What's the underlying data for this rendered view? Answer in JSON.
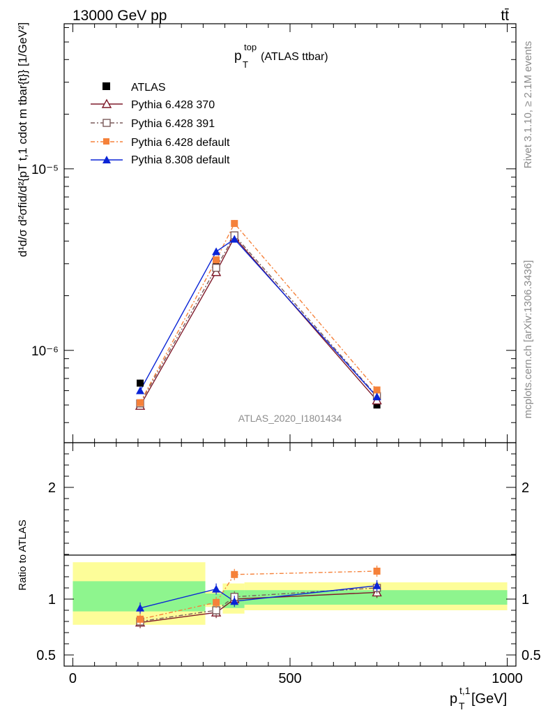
{
  "header": {
    "left": "13000 GeV pp",
    "right": "tt̄"
  },
  "side_labels": {
    "rivet": "Rivet 3.1.10, ≥ 2.1M events",
    "mcplots": "mcplots.cern.ch [arXiv:1306.3436]"
  },
  "analysis_id": "ATLAS_2020_I1801434",
  "colors": {
    "atlas": "#000000",
    "p370": "#7f1a2a",
    "p391": "#7a5a5a",
    "p6def": "#f5813a",
    "p8def": "#0a24d6",
    "green": "#8ef58e",
    "yellow": "#fdfd99"
  },
  "chart_data": [
    {
      "type": "line",
      "panel": "main",
      "title_main": "p",
      "title_sub": "T",
      "title_sup": "top",
      "title_rest": " (ATLAS ttbar)",
      "ylabel": "d¹d/σ d² σ^{fid}/d² {p_T^{t,1} cdot m^{tbar{t}}} [1/GeV²]",
      "ylabel_display": "d¹d/σ d²σfid/d²{pT t,1 cdot m tbar{t}} [1/GeV²]",
      "yscale": "log",
      "ylim": [
        3.1e-07,
        6.3e-05
      ],
      "xlim": [
        -20,
        1020
      ],
      "y_tick_labels": [
        "10⁻⁶",
        "10⁻⁵"
      ],
      "series": [
        {
          "name": "ATLAS",
          "x": [
            155,
            330,
            372,
            700
          ],
          "y": [
            6.6e-07,
            2.95e-06,
            4.15e-06,
            5e-07
          ],
          "err": [
            3e-09,
            2e-07,
            2.5e-07,
            2e-08
          ]
        },
        {
          "name": "Pythia 6.428 370",
          "x": [
            155,
            330,
            372,
            700
          ],
          "y": [
            4.95e-07,
            2.7e-06,
            4.2e-06,
            5.3e-07
          ]
        },
        {
          "name": "Pythia 6.428 391",
          "x": [
            155,
            330,
            372,
            700
          ],
          "y": [
            5.1e-07,
            2.85e-06,
            4.3e-06,
            5.6e-07
          ]
        },
        {
          "name": "Pythia 6.428 default",
          "x": [
            155,
            330,
            372,
            700
          ],
          "y": [
            5.15e-07,
            3.15e-06,
            5e-06,
            6.05e-07
          ]
        },
        {
          "name": "Pythia 8.308 default",
          "x": [
            155,
            330,
            372,
            700
          ],
          "y": [
            6e-07,
            3.5e-06,
            4.1e-06,
            5.55e-07
          ]
        }
      ]
    },
    {
      "type": "line",
      "panel": "ratio",
      "ylabel": "Ratio to ATLAS",
      "xlabel_main": "p",
      "xlabel_sub": "T",
      "xlabel_sup": "t,1",
      "xlabel_rest": " [GeV]",
      "xlim": [
        -20,
        1020
      ],
      "ylim": [
        0.4,
        2.4
      ],
      "x_tick_labels": [
        "0",
        "500",
        "1000"
      ],
      "y_tick_labels": [
        "0.5",
        "1",
        "2"
      ],
      "bands": [
        {
          "x0": 0,
          "x1": 305,
          "green": [
            0.89,
            1.16
          ],
          "yellow": [
            0.77,
            1.33
          ]
        },
        {
          "x0": 305,
          "x1": 345,
          "green": [
            0.95,
            1.05
          ],
          "yellow": [
            0.93,
            1.07
          ]
        },
        {
          "x0": 345,
          "x1": 395,
          "green": [
            0.92,
            1.08
          ],
          "yellow": [
            0.87,
            1.14
          ]
        },
        {
          "x0": 395,
          "x1": 1000,
          "green": [
            0.95,
            1.08
          ],
          "yellow": [
            0.9,
            1.15
          ]
        }
      ],
      "series": [
        {
          "name": "Pythia 6.428 370",
          "x": [
            155,
            330,
            372,
            700
          ],
          "y": [
            0.79,
            0.88,
            1.0,
            1.06
          ]
        },
        {
          "name": "Pythia 6.428 391",
          "x": [
            155,
            330,
            372,
            700
          ],
          "y": [
            0.8,
            0.9,
            1.02,
            1.1
          ]
        },
        {
          "name": "Pythia 6.428 default",
          "x": [
            155,
            330,
            372,
            700
          ],
          "y": [
            0.82,
            0.97,
            1.22,
            1.25
          ]
        },
        {
          "name": "Pythia 8.308 default",
          "x": [
            155,
            330,
            372,
            700
          ],
          "y": [
            0.92,
            1.09,
            0.98,
            1.12
          ]
        }
      ]
    }
  ]
}
